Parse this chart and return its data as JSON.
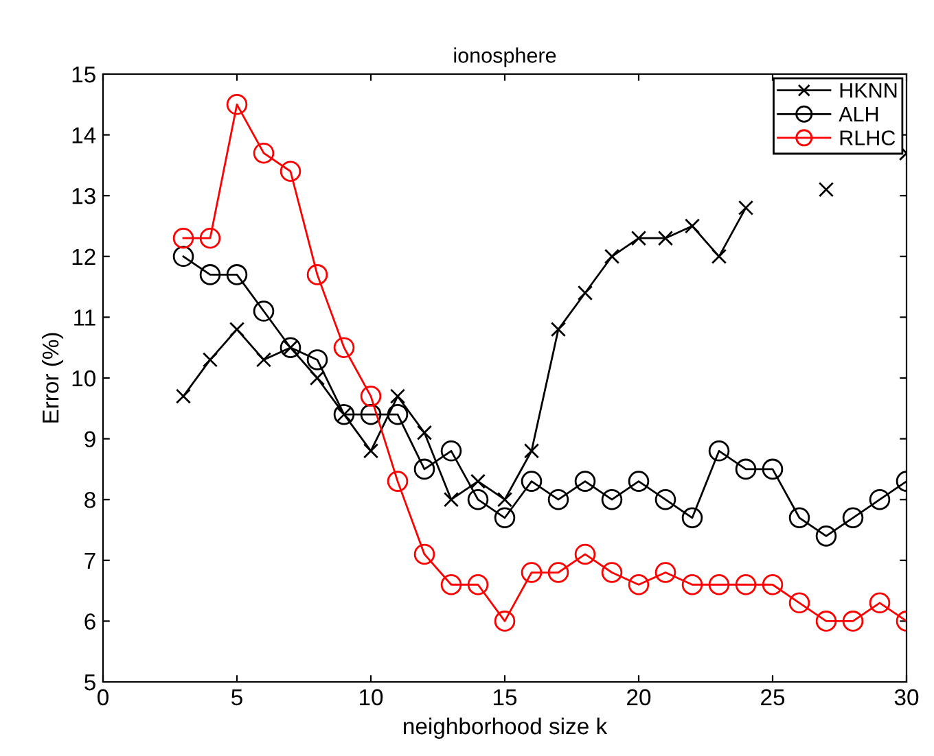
{
  "chart_data": {
    "type": "line",
    "title": "ionosphere",
    "xlabel": "neighborhood size k",
    "ylabel": "Error (%)",
    "x": [
      3,
      4,
      5,
      6,
      7,
      8,
      9,
      10,
      11,
      12,
      13,
      14,
      15,
      16,
      17,
      18,
      19,
      20,
      21,
      22,
      23,
      24,
      25,
      26,
      27,
      28,
      29,
      30
    ],
    "series": [
      {
        "name": "HKNN",
        "color": "#000000",
        "marker": "cross",
        "values": [
          9.7,
          10.3,
          10.8,
          10.3,
          10.5,
          10.0,
          9.4,
          8.8,
          9.7,
          9.1,
          8.0,
          8.3,
          8.0,
          8.8,
          10.8,
          11.4,
          12.0,
          12.3,
          12.3,
          12.5,
          12.0,
          12.8,
          null,
          null,
          13.1,
          null,
          null,
          13.7
        ]
      },
      {
        "name": "ALH",
        "color": "#000000",
        "marker": "circle",
        "values": [
          12.0,
          11.7,
          11.7,
          11.1,
          10.5,
          10.3,
          9.4,
          9.4,
          9.4,
          8.5,
          8.8,
          8.0,
          7.7,
          8.3,
          8.0,
          8.3,
          8.0,
          8.3,
          8.0,
          7.7,
          8.8,
          8.5,
          8.5,
          7.7,
          7.4,
          7.7,
          8.0,
          8.3
        ]
      },
      {
        "name": "RLHC",
        "color": "#ff0000",
        "marker": "circle",
        "values": [
          12.3,
          12.3,
          14.5,
          13.7,
          13.4,
          11.7,
          10.5,
          9.7,
          8.3,
          7.1,
          6.6,
          6.6,
          6.0,
          6.8,
          6.8,
          7.1,
          6.8,
          6.6,
          6.8,
          6.6,
          6.6,
          6.6,
          6.6,
          6.3,
          6.0,
          6.0,
          6.3,
          6.0
        ]
      }
    ],
    "xlim": [
      0,
      30
    ],
    "xticks": [
      0,
      5,
      10,
      15,
      20,
      25,
      30
    ],
    "ylim": [
      5,
      15
    ],
    "yticks": [
      5,
      6,
      7,
      8,
      9,
      10,
      11,
      12,
      13,
      14,
      15
    ],
    "grid": false,
    "legend": "top right",
    "line_style": "solid"
  }
}
